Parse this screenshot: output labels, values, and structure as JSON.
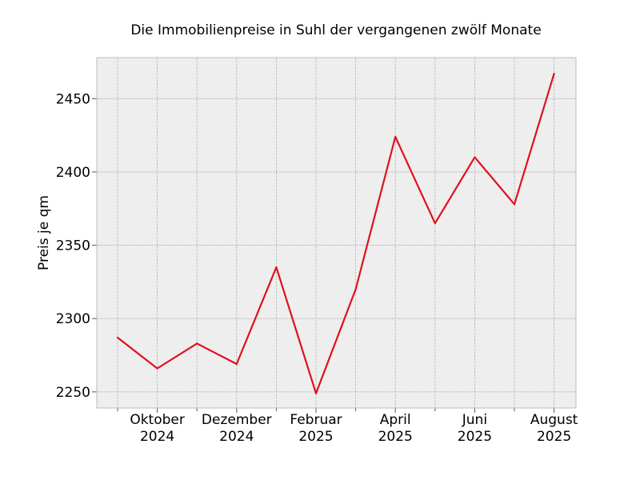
{
  "chart_data": {
    "type": "line",
    "title": "Die Immobilienpreise in Suhl der vergangenen zwölf Monate",
    "xlabel": "",
    "ylabel": "Preis je qm",
    "x": [
      "2024-09",
      "2024-10",
      "2024-11",
      "2024-12",
      "2025-01",
      "2025-02",
      "2025-03",
      "2025-04",
      "2025-05",
      "2025-06",
      "2025-07",
      "2025-08"
    ],
    "series": [
      {
        "values": [
          2287,
          2266,
          2283,
          2269,
          2335,
          2249,
          2320,
          2424,
          2365,
          2410,
          2378,
          2467
        ],
        "color": "#e0101e"
      }
    ],
    "x_tick_labels": [
      {
        "x": "2024-10",
        "line1": "Oktober",
        "line2": "2024"
      },
      {
        "x": "2024-12",
        "line1": "Dezember",
        "line2": "2024"
      },
      {
        "x": "2025-02",
        "line1": "Februar",
        "line2": "2025"
      },
      {
        "x": "2025-04",
        "line1": "April",
        "line2": "2025"
      },
      {
        "x": "2025-06",
        "line1": "Juni",
        "line2": "2025"
      },
      {
        "x": "2025-08",
        "line1": "August",
        "line2": "2025"
      }
    ],
    "yticks": [
      "2250",
      "2300",
      "2350",
      "2400",
      "2450"
    ],
    "ylim": [
      2239,
      2478
    ],
    "grid": true,
    "background": "#eeeeee",
    "frame_color": "#bcbcbc"
  }
}
